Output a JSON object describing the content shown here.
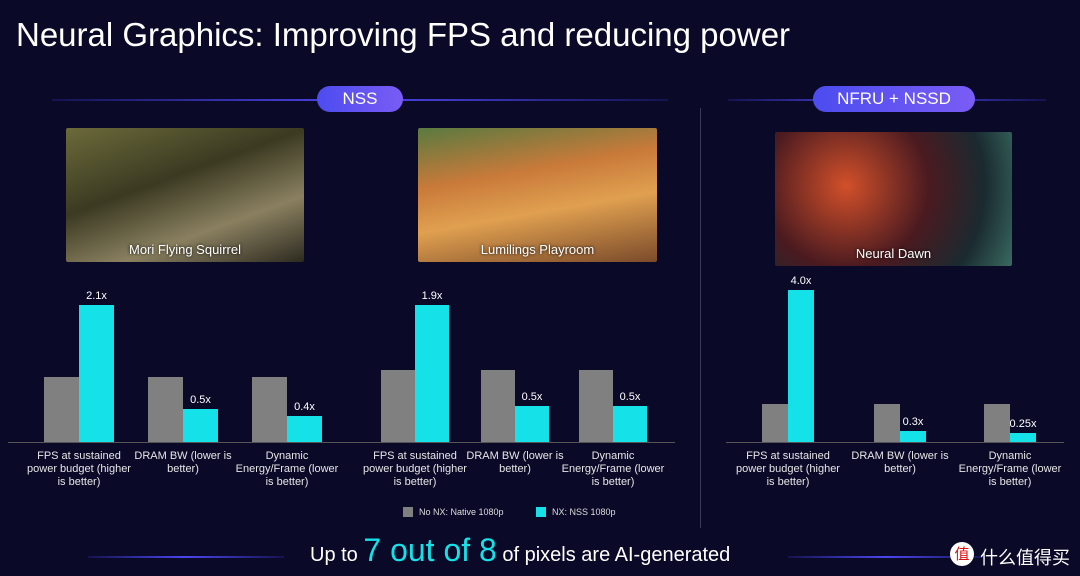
{
  "title": "Neural Graphics: Improving FPS and reducing power",
  "sections": [
    "NSS",
    "NFRU + NSSD"
  ],
  "chart_data": [
    {
      "type": "bar",
      "image_caption": "Mori Flying Squirrel",
      "categories": [
        "FPS at sustained power budget (higher is better)",
        "DRAM BW (lower is better)",
        "Dynamic Energy/Frame (lower is better)"
      ],
      "series": [
        {
          "name": "No NX: Native 1080p",
          "color": "#808080",
          "values": [
            1,
            1,
            1
          ]
        },
        {
          "name": "NX: NSS 1080p",
          "color": "#14e2e8",
          "values": [
            2.1,
            0.5,
            0.4
          ],
          "value_labels": [
            "2.1x",
            "0.5x",
            "0.4x"
          ]
        }
      ]
    },
    {
      "type": "bar",
      "image_caption": "Lumilings Playroom",
      "categories": [
        "FPS at sustained power budget (higher is better)",
        "DRAM BW (lower is better)",
        "Dynamic Energy/Frame (lower is better)"
      ],
      "series": [
        {
          "color": "#808080",
          "values": [
            1,
            1,
            1
          ]
        },
        {
          "color": "#14e2e8",
          "values": [
            1.9,
            0.5,
            0.5
          ],
          "value_labels": [
            "1.9x",
            "0.5x",
            "0.5x"
          ]
        }
      ]
    },
    {
      "type": "bar",
      "image_caption": "Neural Dawn",
      "categories": [
        "FPS at sustained power budget (higher is better)",
        "DRAM BW (lower is better)",
        "Dynamic Energy/Frame (lower is better)"
      ],
      "series": [
        {
          "color": "#808080",
          "values": [
            1,
            1,
            1
          ]
        },
        {
          "color": "#14e2e8",
          "values": [
            4,
            0.3,
            0.25
          ],
          "value_labels": [
            "4.0x",
            "0.3x",
            "0.25x"
          ]
        }
      ]
    }
  ],
  "footer": {
    "prefix": "Up to",
    "highlight": "7 out of 8",
    "suffix": "of pixels are AI-generated"
  },
  "watermark": {
    "icon": "值",
    "text": "什么值得买"
  }
}
